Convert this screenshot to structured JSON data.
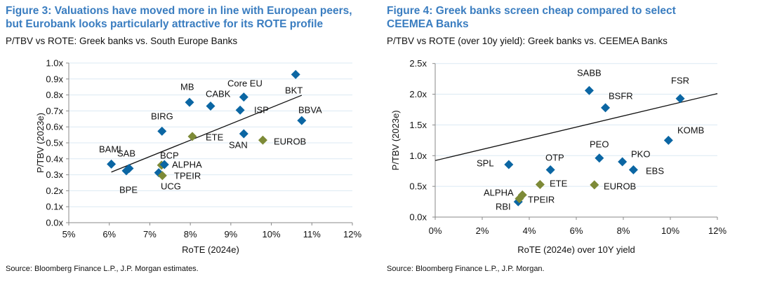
{
  "colors": {
    "greek": "#7d8a37",
    "peer": "#0b66a3",
    "title": "#3a7dc0",
    "grid": "#dbe9f3"
  },
  "chart_data": [
    {
      "type": "scatter",
      "title": "Figure 3: Valuations have moved more in line with European peers, but Eurobank looks particularly attractive for its ROTE profile",
      "subtitle": "P/TBV vs ROTE: Greek banks vs. South Europe Banks",
      "xlabel": "RoTE (2024e)",
      "ylabel": "P/TBV (2023e)",
      "xlim": [
        5,
        12
      ],
      "ylim": [
        0,
        1.0
      ],
      "xticks": [
        "5%",
        "6%",
        "7%",
        "8%",
        "9%",
        "10%",
        "11%",
        "12%"
      ],
      "yticks": [
        "0.0x",
        "0.1x",
        "0.2x",
        "0.3x",
        "0.4x",
        "0.5x",
        "0.6x",
        "0.7x",
        "0.8x",
        "0.9x",
        "1.0x"
      ],
      "grid": true,
      "source": "Source: Bloomberg Finance L.P., J.P. Morgan estimates.",
      "trendline": [
        [
          6.05,
          0.317
        ],
        [
          10.75,
          0.798
        ]
      ],
      "points": [
        {
          "label": "BAMI",
          "x": 6.05,
          "y": 0.367,
          "group": "peer"
        },
        {
          "label": "SAB",
          "x": 6.49,
          "y": 0.34,
          "group": "peer"
        },
        {
          "label": "BPE",
          "x": 6.42,
          "y": 0.325,
          "group": "peer"
        },
        {
          "label": "BIRG",
          "x": 7.3,
          "y": 0.573,
          "group": "peer"
        },
        {
          "label": "MB",
          "x": 7.98,
          "y": 0.754,
          "group": "peer"
        },
        {
          "label": "CABK",
          "x": 8.5,
          "y": 0.73,
          "group": "peer"
        },
        {
          "label": "Core EU",
          "x": 9.32,
          "y": 0.787,
          "group": "peer"
        },
        {
          "label": "ISP",
          "x": 9.23,
          "y": 0.705,
          "group": "peer"
        },
        {
          "label": "BKT",
          "x": 10.6,
          "y": 0.928,
          "group": "peer"
        },
        {
          "label": "BBVA",
          "x": 10.75,
          "y": 0.64,
          "group": "peer"
        },
        {
          "label": "SAN",
          "x": 9.32,
          "y": 0.557,
          "group": "peer"
        },
        {
          "label": "EUROB",
          "x": 9.79,
          "y": 0.517,
          "group": "greek"
        },
        {
          "label": "ETE",
          "x": 8.05,
          "y": 0.54,
          "group": "greek"
        },
        {
          "label": "BCP",
          "x": 7.29,
          "y": 0.36,
          "group": "greek"
        },
        {
          "label": "ALPHA",
          "x": 7.36,
          "y": 0.364,
          "group": "peer"
        },
        {
          "label": "UCG",
          "x": 7.22,
          "y": 0.313,
          "group": "peer"
        },
        {
          "label": "TPEIR",
          "x": 7.31,
          "y": 0.295,
          "group": "greek"
        }
      ]
    },
    {
      "type": "scatter",
      "title": "Figure 4: Greek banks screen cheap compared to select CEEMEA Banks",
      "subtitle": "P/TBV vs ROTE (over 10y yield): Greek banks vs. CEEMEA Banks",
      "xlabel": "RoTE (2024e) over 10Y yield",
      "ylabel": "P/TBV (2023e)",
      "xlim": [
        0,
        12
      ],
      "ylim": [
        0,
        2.5
      ],
      "xticks": [
        "0%",
        "2%",
        "4%",
        "6%",
        "8%",
        "10%",
        "12%"
      ],
      "yticks": [
        "0.0x",
        "0.5x",
        "1.0x",
        "1.5x",
        "2.0x",
        "2.5x"
      ],
      "grid": true,
      "source": "Source: Bloomberg Finance L.P., J.P. Morgan.",
      "trendline": [
        [
          0,
          0.92
        ],
        [
          12,
          2.01
        ]
      ],
      "points": [
        {
          "label": "SABB",
          "x": 6.55,
          "y": 2.06,
          "group": "peer"
        },
        {
          "label": "BSFR",
          "x": 7.24,
          "y": 1.78,
          "group": "peer"
        },
        {
          "label": "FSR",
          "x": 10.42,
          "y": 1.93,
          "group": "peer"
        },
        {
          "label": "KOMB",
          "x": 9.92,
          "y": 1.25,
          "group": "peer"
        },
        {
          "label": "PEO",
          "x": 6.98,
          "y": 0.96,
          "group": "peer"
        },
        {
          "label": "PKO",
          "x": 7.96,
          "y": 0.9,
          "group": "peer"
        },
        {
          "label": "EBS",
          "x": 8.43,
          "y": 0.77,
          "group": "peer"
        },
        {
          "label": "SPL",
          "x": 3.13,
          "y": 0.855,
          "group": "peer"
        },
        {
          "label": "OTP",
          "x": 4.9,
          "y": 0.77,
          "group": "peer"
        },
        {
          "label": "ETE",
          "x": 4.46,
          "y": 0.53,
          "group": "greek"
        },
        {
          "label": "EUROB",
          "x": 6.77,
          "y": 0.525,
          "group": "greek"
        },
        {
          "label": "RBI",
          "x": 3.53,
          "y": 0.25,
          "group": "peer"
        },
        {
          "label": "TPEIR",
          "x": 3.58,
          "y": 0.3,
          "group": "greek"
        },
        {
          "label": "ALPHA",
          "x": 3.71,
          "y": 0.36,
          "group": "greek"
        }
      ]
    }
  ]
}
